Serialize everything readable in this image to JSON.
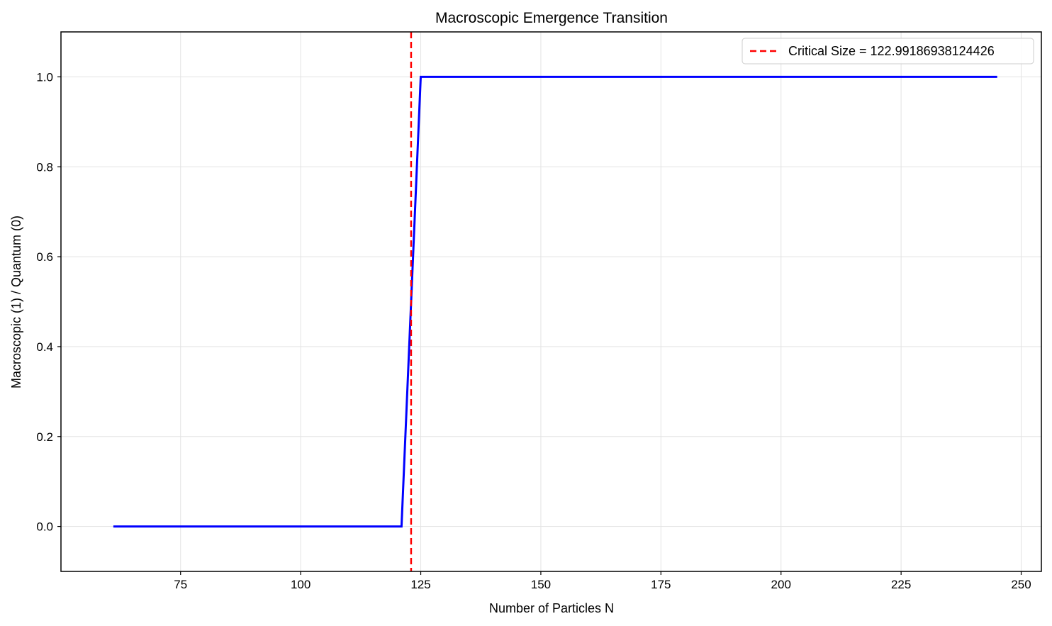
{
  "chart_data": {
    "type": "line",
    "title": "Macroscopic Emergence Transition",
    "xlabel": "Number of Particles N",
    "ylabel": "Macroscopic (1) / Quantum (0)",
    "xlim": [
      50.1,
      254.2
    ],
    "ylim": [
      -0.1,
      1.1
    ],
    "x_ticks": [
      75,
      100,
      125,
      150,
      175,
      200,
      225,
      250
    ],
    "x_tick_labels": [
      "75",
      "100",
      "125",
      "150",
      "175",
      "200",
      "225",
      "250"
    ],
    "y_ticks": [
      0.0,
      0.2,
      0.4,
      0.6,
      0.8,
      1.0
    ],
    "y_tick_labels": [
      "0.0",
      "0.2",
      "0.4",
      "0.6",
      "0.8",
      "1.0"
    ],
    "grid": true,
    "legend_position": "top-right",
    "series": [
      {
        "color": "#0000ff",
        "x": [
          61,
          121,
          125,
          245
        ],
        "y": [
          0,
          0,
          1,
          1
        ]
      }
    ],
    "reference_lines": [
      {
        "orientation": "vertical",
        "x": 122.99186938124426,
        "style": "dashed",
        "color": "#ff0000",
        "label": "Critical Size = 122.99186938124426"
      }
    ]
  }
}
